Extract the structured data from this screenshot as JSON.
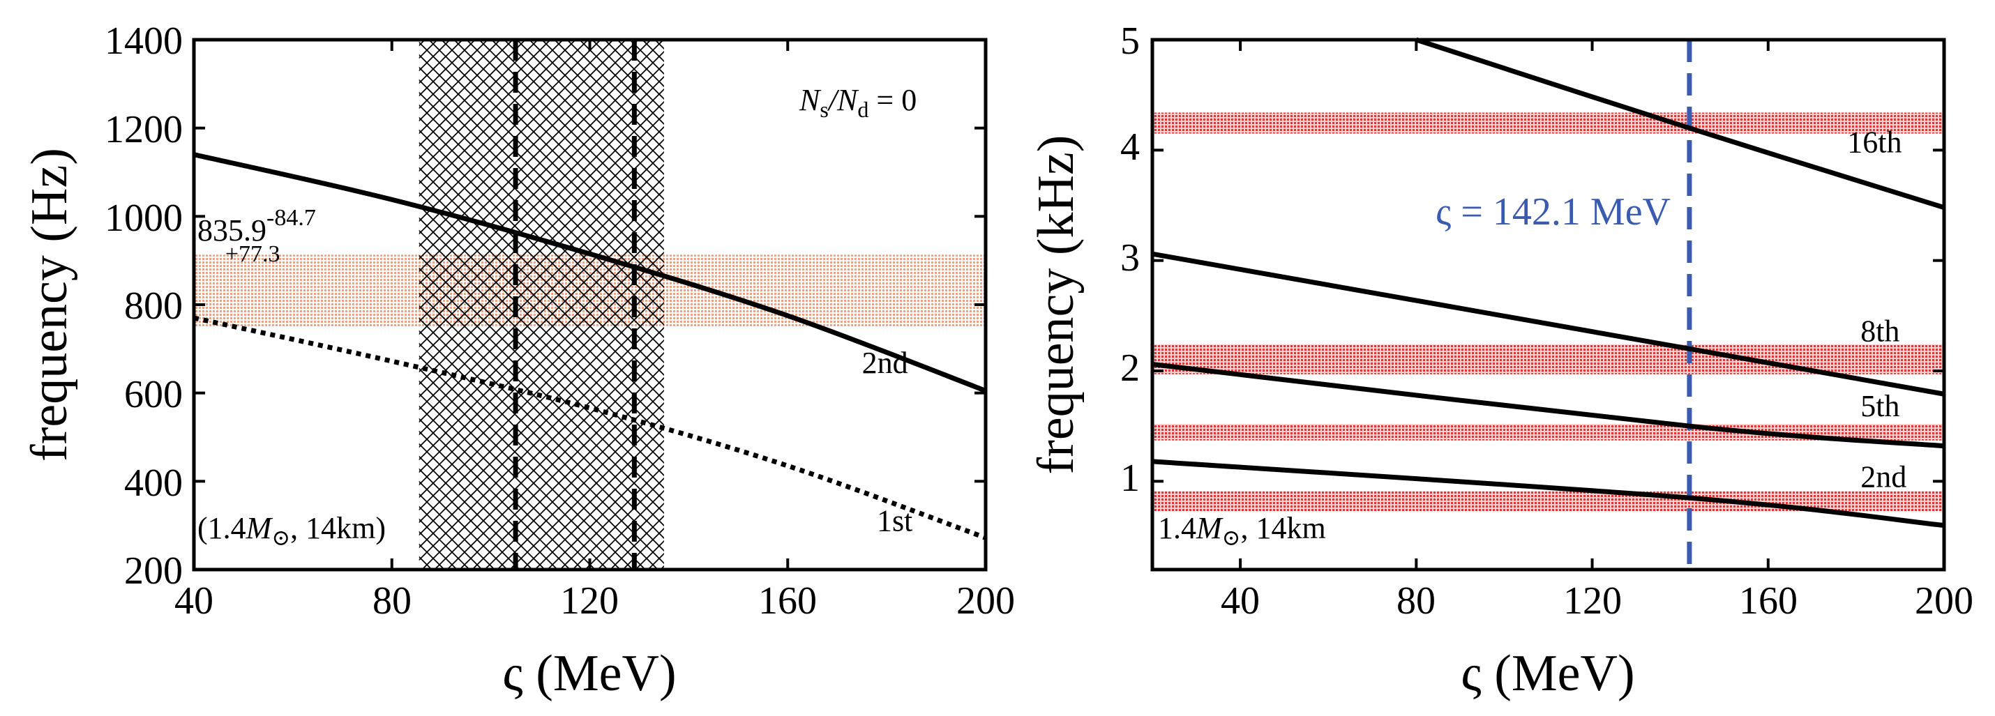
{
  "chart_data": [
    {
      "type": "line",
      "panel": "left",
      "xlabel_symbol": "ς",
      "xlabel_unit": "(MeV)",
      "ylabel": "frequency (Hz)",
      "xlim": [
        40,
        200
      ],
      "ylim": [
        200,
        1400
      ],
      "xticks": [
        40,
        80,
        120,
        160,
        200
      ],
      "yticks": [
        200,
        400,
        600,
        800,
        1000,
        1200,
        1400
      ],
      "series": [
        {
          "name": "2nd",
          "style": "solid",
          "x": [
            40,
            80,
            120,
            160,
            200
          ],
          "values": [
            1140,
            1038,
            915,
            775,
            605
          ]
        },
        {
          "name": "1st",
          "style": "dotted",
          "x": [
            40,
            80,
            120,
            160,
            200
          ],
          "values": [
            770,
            672,
            566,
            435,
            272
          ]
        }
      ],
      "mode_labels": [
        {
          "text": "2nd",
          "x": 175,
          "y": 645
        },
        {
          "text": "1st",
          "x": 178,
          "y": 288
        }
      ],
      "observed_band": {
        "center": 835.9,
        "lower": 751.2,
        "upper": 913.2,
        "color": "#f0a080"
      },
      "constraint_region": {
        "x_range": [
          85.5,
          135
        ],
        "lines_x": [
          105,
          129
        ],
        "pattern": "crosshatch"
      },
      "annotations": {
        "band_value": "835.9",
        "band_sup": "-84.7",
        "band_sub": "+77.3",
        "ratio_N1": "N",
        "ratio_s": "s",
        "ratio_N2": "/N",
        "ratio_d": "d",
        "ratio_eq": " = 0",
        "star_open": "(1.4",
        "star_M": "M",
        "star_sun": "⊙",
        "star_close": ", 14km)"
      }
    },
    {
      "type": "line",
      "panel": "right",
      "xlabel_symbol": "ς",
      "xlabel_unit": "(MeV)",
      "ylabel": "frequency (kHz)",
      "xlim": [
        20,
        200
      ],
      "ylim": [
        0.2,
        5
      ],
      "xticks": [
        40,
        80,
        120,
        160,
        200
      ],
      "yticks": [
        1,
        2,
        3,
        4,
        5
      ],
      "series": [
        {
          "name": "16th",
          "style": "solid",
          "x": [
            80,
            142.1,
            200
          ],
          "values": [
            5.0,
            4.2,
            3.48
          ]
        },
        {
          "name": "8th",
          "style": "solid",
          "x": [
            20,
            142.1,
            200
          ],
          "values": [
            3.06,
            2.2,
            1.79
          ]
        },
        {
          "name": "5th",
          "style": "solid",
          "x": [
            20,
            142.1,
            200
          ],
          "values": [
            2.06,
            1.5,
            1.32
          ]
        },
        {
          "name": "2nd",
          "style": "solid",
          "x": [
            20,
            142.1,
            200
          ],
          "values": [
            1.18,
            0.85,
            0.6
          ]
        }
      ],
      "mode_labels": [
        {
          "text": "16th",
          "x": 178,
          "y": 3.98
        },
        {
          "text": "8th",
          "x": 181,
          "y": 2.27
        },
        {
          "text": "5th",
          "x": 181,
          "y": 1.59
        },
        {
          "text": "2nd",
          "x": 181,
          "y": 0.95
        }
      ],
      "observed_bands": [
        {
          "lower": 4.15,
          "upper": 4.34
        },
        {
          "lower": 1.97,
          "upper": 2.24
        },
        {
          "lower": 1.37,
          "upper": 1.52
        },
        {
          "lower": 0.73,
          "upper": 0.91
        }
      ],
      "band_color": "#e84040",
      "vline": {
        "x": 142.1,
        "color": "#3a5bb0"
      },
      "annotations": {
        "vline_label": "ς = 142.1 MeV",
        "star_open": "1.4",
        "star_M": "M",
        "star_sun": "⊙",
        "star_close": ", 14km"
      }
    }
  ]
}
